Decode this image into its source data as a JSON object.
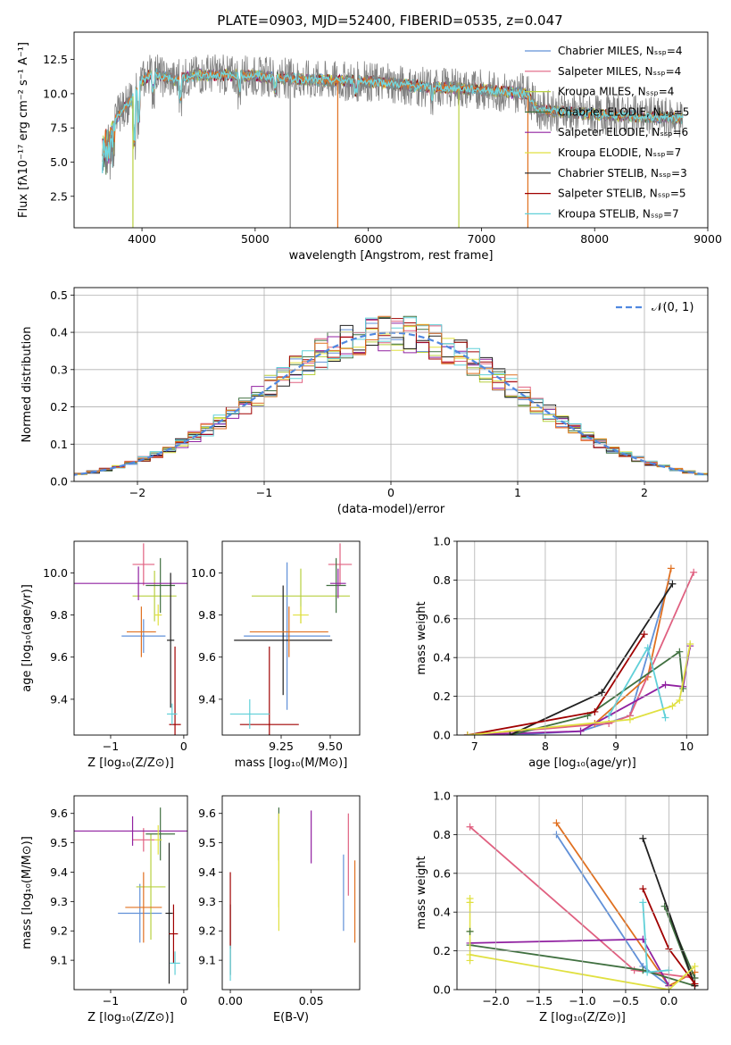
{
  "title": "PLATE=0903, MJD=52400, FIBERID=0535, z=0.047",
  "colors": [
    "#6090d8",
    "#e06080",
    "#b8d040",
    "#407040",
    "#9020a0",
    "#e0e040",
    "#202020",
    "#a00000",
    "#60d0d8"
  ],
  "chart_data": [
    {
      "id": "spectrum",
      "type": "line",
      "xlabel": "wavelength [Angstrom, rest frame]",
      "ylabel": "Flux [fλ10⁻¹⁷ erg cm⁻² s⁻¹ A⁻¹]",
      "xlim": [
        3400,
        9000
      ],
      "ylim": [
        0.2,
        14.5
      ],
      "xticks": [
        "4000",
        "5000",
        "6000",
        "7000",
        "8000",
        "9000"
      ],
      "yticks": [
        "2.5",
        "5.0",
        "7.5",
        "10.0",
        "12.5"
      ],
      "legend_position": "top-right",
      "series": [
        {
          "name": "Chabrier MILES, Nₛₛₚ=4",
          "color": "#6090d8"
        },
        {
          "name": "Salpeter MILES, Nₛₛₚ=4",
          "color": "#e06080"
        },
        {
          "name": "Kroupa MILES, Nₛₛₚ=4",
          "color": "#b8d040"
        },
        {
          "name": "Chabrier ELODIE, Nₛₛₚ=5",
          "color": "#407040"
        },
        {
          "name": "Salpeter ELODIE, Nₛₛₚ=6",
          "color": "#9020a0"
        },
        {
          "name": "Kroupa ELODIE, Nₛₛₚ=7",
          "color": "#e0e040"
        },
        {
          "name": "Chabrier STELIB, Nₛₛₚ=3",
          "color": "#202020"
        },
        {
          "name": "Salpeter STELIB, Nₛₛₚ=5",
          "color": "#a00000"
        },
        {
          "name": "Kroupa STELIB, Nₛₛₚ=7",
          "color": "#60d0d8"
        }
      ],
      "continuum": {
        "x": [
          3650,
          3700,
          3800,
          3900,
          4000,
          4100,
          4200,
          4300,
          4500,
          5000,
          5500,
          6000,
          6500,
          7000,
          7400,
          7500,
          8000,
          8500,
          8800
        ],
        "y": [
          7.0,
          7.5,
          8.5,
          9.5,
          11.0,
          11.5,
          11.2,
          11.0,
          11.4,
          11.3,
          11.0,
          10.9,
          10.5,
          10.3,
          10.0,
          8.8,
          8.5,
          8.3,
          8.2
        ]
      },
      "spikes": [
        {
          "x": 3920,
          "y": 0.2
        },
        {
          "x": 5310,
          "y": 0.2
        },
        {
          "x": 5730,
          "y": 0.2
        },
        {
          "x": 6800,
          "y": 0.2
        },
        {
          "x": 7410,
          "y": 0.2
        }
      ]
    },
    {
      "id": "residuals",
      "type": "step",
      "xlabel": "(data-model)/error",
      "ylabel": "Normed distribution",
      "xlim": [
        -2.5,
        2.5
      ],
      "ylim": [
        0,
        0.52
      ],
      "xticks": [
        "−2",
        "−1",
        "0",
        "1",
        "2"
      ],
      "yticks": [
        "0.0",
        "0.1",
        "0.2",
        "0.3",
        "0.4",
        "0.5"
      ],
      "grid": true,
      "legend_position": "top-right",
      "legend": "𝒩(0, 1)",
      "reference": {
        "type": "normal",
        "mean": 0,
        "sigma": 1
      }
    },
    {
      "id": "age-vs-Z",
      "type": "errorbar",
      "xlabel": "Z [log₁₀(Z/Z⊙)]",
      "ylabel": "age  [log₁₀(age/yr)]",
      "xlim": [
        -1.5,
        0.05
      ],
      "ylim": [
        9.23,
        10.15
      ],
      "xticks": [
        "−1",
        "0"
      ],
      "yticks": [
        "9.4",
        "9.6",
        "9.8",
        "10.0"
      ],
      "points": [
        {
          "x": -0.55,
          "y": 9.7,
          "xerr": 0.3,
          "yerr": 0.08,
          "color": "#6090d8"
        },
        {
          "x": -0.55,
          "y": 10.04,
          "xerr": 0.15,
          "yerr": 0.1,
          "color": "#e06080"
        },
        {
          "x": -0.4,
          "y": 9.89,
          "xerr": 0.3,
          "yerr": 0.12,
          "color": "#b8d040"
        },
        {
          "x": -0.32,
          "y": 9.94,
          "xerr": 0.2,
          "yerr": 0.13,
          "color": "#407040"
        },
        {
          "x": -0.62,
          "y": 9.95,
          "xerr": 0.9,
          "yerr": 0.08,
          "color": "#9020a0"
        },
        {
          "x": -0.35,
          "y": 9.8,
          "xerr": 0.05,
          "yerr": 0.05,
          "color": "#e0e040"
        },
        {
          "x": -0.18,
          "y": 9.68,
          "xerr": 0.05,
          "yerr": 0.32,
          "color": "#202020"
        },
        {
          "x": -0.12,
          "y": 9.28,
          "xerr": 0.08,
          "yerr": 0.37,
          "color": "#a00000"
        },
        {
          "x": -0.16,
          "y": 9.33,
          "xerr": 0.07,
          "yerr": 0.05,
          "color": "#60d0d8"
        },
        {
          "x": -0.58,
          "y": 9.72,
          "xerr": 0.2,
          "yerr": 0.12,
          "color": "#e07020"
        }
      ]
    },
    {
      "id": "age-vs-mass",
      "type": "errorbar",
      "xlabel": "mass [log₁₀(M/M⊙)]",
      "ylabel": "",
      "xlim": [
        8.95,
        9.65
      ],
      "ylim": [
        9.23,
        10.15
      ],
      "xticks": [
        "9.25",
        "9.50"
      ],
      "yticks": [
        "9.4",
        "9.6",
        "9.8",
        "10.0"
      ],
      "points": [
        {
          "x": 9.28,
          "y": 9.7,
          "xerr": 0.22,
          "yerr": 0.35,
          "color": "#6090d8"
        },
        {
          "x": 9.55,
          "y": 10.04,
          "xerr": 0.06,
          "yerr": 0.1,
          "color": "#e06080"
        },
        {
          "x": 9.35,
          "y": 9.89,
          "xerr": 0.25,
          "yerr": 0.13,
          "color": "#b8d040"
        },
        {
          "x": 9.53,
          "y": 9.94,
          "xerr": 0.05,
          "yerr": 0.13,
          "color": "#407040"
        },
        {
          "x": 9.54,
          "y": 9.95,
          "xerr": 0.04,
          "yerr": 0.07,
          "color": "#9020a0"
        },
        {
          "x": 9.35,
          "y": 9.8,
          "xerr": 0.04,
          "yerr": 0.04,
          "color": "#e0e040"
        },
        {
          "x": 9.26,
          "y": 9.68,
          "xerr": 0.25,
          "yerr": 0.26,
          "color": "#202020"
        },
        {
          "x": 9.19,
          "y": 9.28,
          "xerr": 0.15,
          "yerr": 0.37,
          "color": "#a00000"
        },
        {
          "x": 9.09,
          "y": 9.33,
          "xerr": 0.1,
          "yerr": 0.07,
          "color": "#60d0d8"
        },
        {
          "x": 9.29,
          "y": 9.72,
          "xerr": 0.2,
          "yerr": 0.12,
          "color": "#e07020"
        }
      ]
    },
    {
      "id": "weight-vs-age",
      "type": "line",
      "xlabel": "age  [log₁₀(age/yr)]",
      "ylabel": "mass weight",
      "xlim": [
        6.75,
        10.3
      ],
      "ylim": [
        0,
        1.0
      ],
      "xticks": [
        "7",
        "8",
        "9",
        "10"
      ],
      "yticks": [
        "0.0",
        "0.2",
        "0.4",
        "0.6",
        "0.8",
        "1.0"
      ],
      "grid": true,
      "series": [
        {
          "color": "#6090d8",
          "x": [
            7.5,
            8.5,
            9.2,
            9.75
          ],
          "y": [
            0.0,
            0.02,
            0.1,
            0.8
          ]
        },
        {
          "color": "#e07020",
          "x": [
            6.9,
            8.7,
            9.45,
            9.78
          ],
          "y": [
            0.0,
            0.06,
            0.3,
            0.86
          ]
        },
        {
          "color": "#e06080",
          "x": [
            6.9,
            8.9,
            9.2,
            10.1
          ],
          "y": [
            0.0,
            0.06,
            0.1,
            0.84
          ]
        },
        {
          "color": "#9020a0",
          "x": [
            6.9,
            8.5,
            9.7,
            9.95,
            10.05
          ],
          "y": [
            0.0,
            0.02,
            0.26,
            0.25,
            0.46
          ]
        },
        {
          "color": "#407040",
          "x": [
            7.5,
            8.6,
            9.9,
            9.95
          ],
          "y": [
            0.0,
            0.1,
            0.43,
            0.24
          ]
        },
        {
          "color": "#202020",
          "x": [
            7.5,
            8.8,
            9.8
          ],
          "y": [
            0.0,
            0.22,
            0.78
          ]
        },
        {
          "color": "#a00000",
          "x": [
            6.9,
            8.7,
            9.4
          ],
          "y": [
            0.0,
            0.12,
            0.52
          ]
        },
        {
          "color": "#60d0d8",
          "x": [
            8.9,
            9.45,
            9.7
          ],
          "y": [
            0.1,
            0.45,
            0.09
          ]
        },
        {
          "color": "#e0e040",
          "x": [
            6.9,
            9.2,
            9.8,
            9.9,
            10.05
          ],
          "y": [
            0.0,
            0.08,
            0.15,
            0.18,
            0.47
          ]
        }
      ]
    },
    {
      "id": "mass-vs-Z",
      "type": "errorbar",
      "xlabel": "Z [log₁₀(Z/Z⊙)]",
      "ylabel": "mass [log₁₀(M/M⊙)]",
      "xlim": [
        -1.5,
        0.05
      ],
      "ylim": [
        9.0,
        9.66
      ],
      "xticks": [
        "−1",
        "0"
      ],
      "yticks": [
        "9.1",
        "9.2",
        "9.3",
        "9.4",
        "9.5",
        "9.6"
      ],
      "points": [
        {
          "x": -0.6,
          "y": 9.26,
          "xerr": 0.3,
          "yerr": 0.1,
          "color": "#6090d8"
        },
        {
          "x": -0.55,
          "y": 9.51,
          "xerr": 0.15,
          "yerr": 0.04,
          "color": "#e06080"
        },
        {
          "x": -0.45,
          "y": 9.35,
          "xerr": 0.2,
          "yerr": 0.18,
          "color": "#b8d040"
        },
        {
          "x": -0.32,
          "y": 9.53,
          "xerr": 0.2,
          "yerr": 0.09,
          "color": "#407040"
        },
        {
          "x": -0.7,
          "y": 9.54,
          "xerr": 0.8,
          "yerr": 0.05,
          "color": "#9020a0"
        },
        {
          "x": -0.35,
          "y": 9.51,
          "xerr": 0.05,
          "yerr": 0.05,
          "color": "#e0e040"
        },
        {
          "x": -0.2,
          "y": 9.26,
          "xerr": 0.05,
          "yerr": 0.24,
          "color": "#202020"
        },
        {
          "x": -0.14,
          "y": 9.19,
          "xerr": 0.06,
          "yerr": 0.1,
          "color": "#a00000"
        },
        {
          "x": -0.12,
          "y": 9.09,
          "xerr": 0.07,
          "yerr": 0.04,
          "color": "#60d0d8"
        },
        {
          "x": -0.55,
          "y": 9.28,
          "xerr": 0.25,
          "yerr": 0.12,
          "color": "#e07020"
        }
      ]
    },
    {
      "id": "mass-vs-ebv",
      "type": "errorbar",
      "xlabel": "E(B-V)",
      "ylabel": "",
      "xlim": [
        -0.005,
        0.08
      ],
      "ylim": [
        9.0,
        9.66
      ],
      "xticks": [
        "0.00",
        "0.05"
      ],
      "yticks": [
        "9.1",
        "9.2",
        "9.3",
        "9.4",
        "9.5",
        "9.6"
      ],
      "points": [
        {
          "x": 0.07,
          "y": 9.33,
          "yerr": 0.13,
          "color": "#6090d8"
        },
        {
          "x": 0.073,
          "y": 9.46,
          "yerr": 0.14,
          "color": "#e06080"
        },
        {
          "x": 0.03,
          "y": 9.43,
          "yerr": 0.15,
          "color": "#b8d040"
        },
        {
          "x": 0.03,
          "y": 9.53,
          "yerr": 0.09,
          "color": "#407040"
        },
        {
          "x": 0.05,
          "y": 9.52,
          "yerr": 0.09,
          "color": "#9020a0"
        },
        {
          "x": 0.03,
          "y": 9.4,
          "yerr": 0.2,
          "color": "#e0e040"
        },
        {
          "x": 0.0,
          "y": 9.17,
          "yerr": 0.12,
          "color": "#202020"
        },
        {
          "x": 0.0,
          "y": 9.27,
          "yerr": 0.13,
          "color": "#a00000"
        },
        {
          "x": 0.0,
          "y": 9.09,
          "yerr": 0.06,
          "color": "#60d0d8"
        },
        {
          "x": 0.077,
          "y": 9.3,
          "yerr": 0.14,
          "color": "#e07020"
        }
      ]
    },
    {
      "id": "weight-vs-Z",
      "type": "line",
      "xlabel": "Z [log₁₀(Z/Z⊙)]",
      "ylabel": "mass weight",
      "xlim": [
        -2.45,
        0.45
      ],
      "ylim": [
        0,
        1.0
      ],
      "xticks": [
        "−2.0",
        "−1.5",
        "−1.0",
        "−0.5",
        "0.0"
      ],
      "yticks": [
        "0.0",
        "0.2",
        "0.4",
        "0.6",
        "0.8",
        "1.0"
      ],
      "grid": true,
      "series": [
        {
          "color": "#6090d8",
          "x": [
            -1.3,
            -0.3,
            0.0
          ],
          "y": [
            0.8,
            0.12,
            0.02
          ]
        },
        {
          "color": "#e07020",
          "x": [
            -1.3,
            0.0,
            0.3
          ],
          "y": [
            0.86,
            0.02,
            0.09
          ]
        },
        {
          "color": "#e06080",
          "x": [
            -2.3,
            -0.4,
            0.3
          ],
          "y": [
            0.84,
            0.1,
            0.06
          ]
        },
        {
          "color": "#9020a0",
          "x": [
            -2.3,
            -0.3,
            0.0
          ],
          "y": [
            0.24,
            0.26,
            0.02
          ]
        },
        {
          "color": "#407040",
          "x": [
            -2.3,
            -0.3,
            0.3,
            -0.05,
            0.3
          ],
          "y": [
            0.23,
            0.1,
            0.02,
            0.43,
            0.06
          ]
        },
        {
          "color": "#202020",
          "x": [
            -0.3,
            0.3
          ],
          "y": [
            0.78,
            0.02
          ]
        },
        {
          "color": "#a00000",
          "x": [
            -0.3,
            0.0,
            0.3
          ],
          "y": [
            0.52,
            0.21,
            0.03
          ]
        },
        {
          "color": "#60d0d8",
          "x": [
            -0.3,
            -0.25,
            0.0
          ],
          "y": [
            0.45,
            0.09,
            0.1
          ]
        },
        {
          "color": "#e0e040",
          "x": [
            -2.3,
            0.0,
            0.3
          ],
          "y": [
            0.18,
            0.0,
            0.12
          ]
        }
      ],
      "extra_marks": [
        {
          "color": "#e0e040",
          "x": -2.3,
          "y": [
            0.47,
            0.45,
            0.3,
            0.15
          ]
        },
        {
          "color": "#407040",
          "x": -2.3,
          "y": [
            0.3
          ]
        }
      ]
    }
  ]
}
